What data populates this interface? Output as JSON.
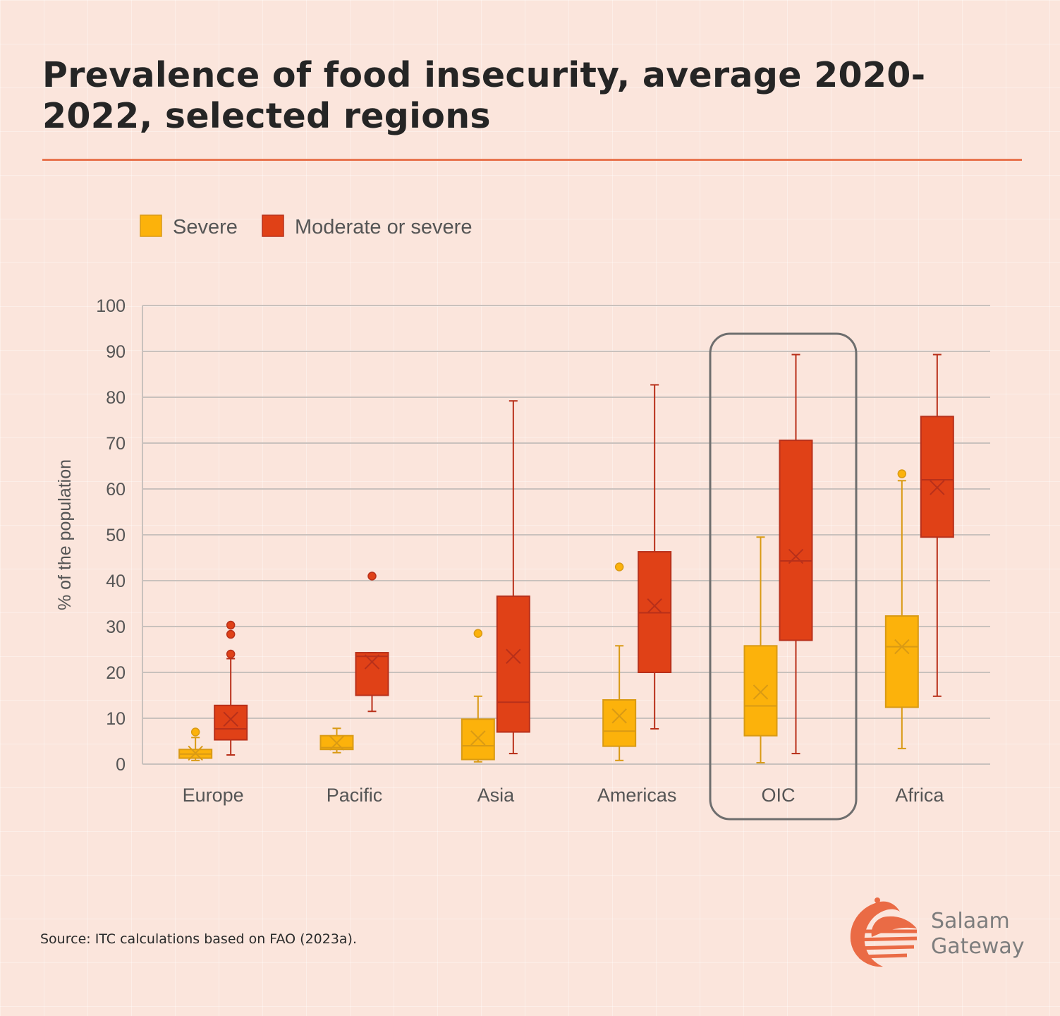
{
  "title": "Prevalence of food insecurity, average 2020-2022, selected regions",
  "source": "Source: ITC calculations based on FAO (2023a).",
  "logo": {
    "line1": "Salaam",
    "line2": "Gateway"
  },
  "colors": {
    "severe": "#fcb20b",
    "severe_edge": "#d99a14",
    "moderate": "#e04117",
    "moderate_edge": "#b8301a",
    "accent": "#e8744f"
  },
  "chart_data": {
    "type": "box",
    "ylabel": "% of the population",
    "ylim": [
      0,
      100
    ],
    "yticks": [
      0,
      10,
      20,
      30,
      40,
      50,
      60,
      70,
      80,
      90,
      100
    ],
    "grid": true,
    "legend": "top-left",
    "highlight": "OIC",
    "categories": [
      "Europe",
      "Pacific",
      "Asia",
      "Americas",
      "OIC",
      "Africa"
    ],
    "series": [
      {
        "name": "Severe",
        "boxes": [
          {
            "min": 0.8,
            "q1": 1.3,
            "median": 2.2,
            "q3": 3.2,
            "max": 5.8,
            "mean": 2.4,
            "outliers": [
              7.0
            ]
          },
          {
            "min": 2.5,
            "q1": 3.2,
            "median": 3.6,
            "q3": 6.2,
            "max": 7.8,
            "mean": 4.6,
            "outliers": []
          },
          {
            "min": 0.5,
            "q1": 1.0,
            "median": 4.0,
            "q3": 9.8,
            "max": 14.8,
            "mean": 5.7,
            "outliers": [
              28.5
            ]
          },
          {
            "min": 0.8,
            "q1": 3.9,
            "median": 7.2,
            "q3": 14.0,
            "max": 25.8,
            "mean": 10.5,
            "outliers": [
              43.0
            ]
          },
          {
            "min": 0.3,
            "q1": 6.2,
            "median": 12.7,
            "q3": 25.8,
            "max": 49.5,
            "mean": 15.7,
            "outliers": []
          },
          {
            "min": 3.4,
            "q1": 12.4,
            "median": 25.6,
            "q3": 32.3,
            "max": 61.8,
            "mean": 25.6,
            "outliers": [
              63.3
            ]
          }
        ]
      },
      {
        "name": "Moderate or severe",
        "boxes": [
          {
            "min": 2.0,
            "q1": 5.3,
            "median": 7.7,
            "q3": 12.8,
            "max": 23.0,
            "mean": 9.8,
            "outliers": [
              24.0,
              28.3,
              30.3
            ]
          },
          {
            "min": 11.5,
            "q1": 15.0,
            "median": 23.5,
            "q3": 24.3,
            "max": 24.3,
            "mean": 22.3,
            "outliers": [
              41.0
            ]
          },
          {
            "min": 2.3,
            "q1": 7.0,
            "median": 13.5,
            "q3": 36.6,
            "max": 79.2,
            "mean": 23.5,
            "outliers": []
          },
          {
            "min": 7.7,
            "q1": 20.0,
            "median": 33.0,
            "q3": 46.3,
            "max": 82.7,
            "mean": 34.5,
            "outliers": []
          },
          {
            "min": 2.3,
            "q1": 27.0,
            "median": 44.3,
            "q3": 70.6,
            "max": 89.3,
            "mean": 45.3,
            "outliers": []
          },
          {
            "min": 14.8,
            "q1": 49.5,
            "median": 62.0,
            "q3": 75.8,
            "max": 89.3,
            "mean": 60.3,
            "outliers": []
          }
        ]
      }
    ]
  }
}
